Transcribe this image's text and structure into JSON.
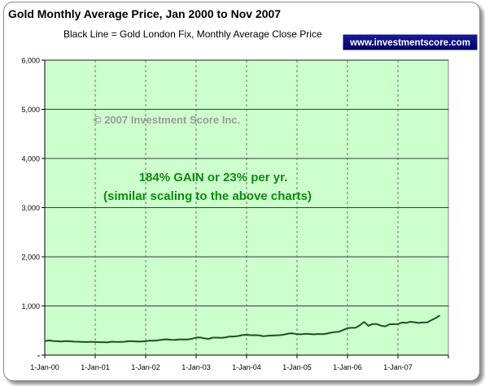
{
  "chart_data": {
    "type": "line",
    "title": "Gold Monthly Average Price, Jan 2000 to Nov 2007",
    "subtitle": "Black Line = Gold London Fix, Monthly Average Close Price",
    "badge_text": "www.investmentscore.com",
    "watermark": "© 2007 Investment Score Inc.",
    "annotation_line1": "184% GAIN or 23% per yr.",
    "annotation_line2": "(similar scaling to the above charts)",
    "ylim": [
      0,
      6000
    ],
    "y_ticks": [
      "6,000",
      "5,000",
      "4,000",
      "3,000",
      "2,000",
      "1,000",
      "-"
    ],
    "x_ticks": [
      "1-Jan-00",
      "1-Jan-01",
      "1-Jan-02",
      "1-Jan-03",
      "1-Jan-04",
      "1-Jan-05",
      "1-Jan-06",
      "1-Jan-07"
    ],
    "x_range": [
      "2000-01-01",
      "2008-01-01"
    ],
    "grid": true,
    "colors": {
      "plot_bg": "#ccffcc",
      "line": "#1f4f1f",
      "annotation": "#118811",
      "badge_bg": "#000080",
      "badge_text": "#ffffff",
      "gridline": "#000000"
    },
    "series": [
      {
        "values": [
          [
            "2000-01-01",
            285
          ],
          [
            "2000-02-01",
            300
          ],
          [
            "2000-03-01",
            288
          ],
          [
            "2000-04-01",
            282
          ],
          [
            "2000-05-01",
            276
          ],
          [
            "2000-06-01",
            285
          ],
          [
            "2000-07-01",
            282
          ],
          [
            "2000-08-01",
            275
          ],
          [
            "2000-09-01",
            273
          ],
          [
            "2000-10-01",
            270
          ],
          [
            "2000-11-01",
            266
          ],
          [
            "2000-12-01",
            271
          ],
          [
            "2001-01-01",
            266
          ],
          [
            "2001-02-01",
            262
          ],
          [
            "2001-03-01",
            263
          ],
          [
            "2001-04-01",
            261
          ],
          [
            "2001-05-01",
            272
          ],
          [
            "2001-06-01",
            270
          ],
          [
            "2001-07-01",
            267
          ],
          [
            "2001-08-01",
            272
          ],
          [
            "2001-09-01",
            283
          ],
          [
            "2001-10-01",
            283
          ],
          [
            "2001-11-01",
            276
          ],
          [
            "2001-12-01",
            276
          ],
          [
            "2002-01-01",
            282
          ],
          [
            "2002-02-01",
            296
          ],
          [
            "2002-03-01",
            294
          ],
          [
            "2002-04-01",
            302
          ],
          [
            "2002-05-01",
            314
          ],
          [
            "2002-06-01",
            322
          ],
          [
            "2002-07-01",
            313
          ],
          [
            "2002-08-01",
            310
          ],
          [
            "2002-09-01",
            319
          ],
          [
            "2002-10-01",
            317
          ],
          [
            "2002-11-01",
            319
          ],
          [
            "2002-12-01",
            333
          ],
          [
            "2003-01-01",
            357
          ],
          [
            "2003-02-01",
            358
          ],
          [
            "2003-03-01",
            340
          ],
          [
            "2003-04-01",
            329
          ],
          [
            "2003-05-01",
            355
          ],
          [
            "2003-06-01",
            356
          ],
          [
            "2003-07-01",
            351
          ],
          [
            "2003-08-01",
            360
          ],
          [
            "2003-09-01",
            379
          ],
          [
            "2003-10-01",
            379
          ],
          [
            "2003-11-01",
            389
          ],
          [
            "2003-12-01",
            407
          ],
          [
            "2004-01-01",
            414
          ],
          [
            "2004-02-01",
            405
          ],
          [
            "2004-03-01",
            406
          ],
          [
            "2004-04-01",
            404
          ],
          [
            "2004-05-01",
            384
          ],
          [
            "2004-06-01",
            392
          ],
          [
            "2004-07-01",
            398
          ],
          [
            "2004-08-01",
            401
          ],
          [
            "2004-09-01",
            406
          ],
          [
            "2004-10-01",
            420
          ],
          [
            "2004-11-01",
            439
          ],
          [
            "2004-12-01",
            442
          ],
          [
            "2005-01-01",
            424
          ],
          [
            "2005-02-01",
            423
          ],
          [
            "2005-03-01",
            434
          ],
          [
            "2005-04-01",
            429
          ],
          [
            "2005-05-01",
            422
          ],
          [
            "2005-06-01",
            430
          ],
          [
            "2005-07-01",
            424
          ],
          [
            "2005-08-01",
            437
          ],
          [
            "2005-09-01",
            456
          ],
          [
            "2005-10-01",
            470
          ],
          [
            "2005-11-01",
            476
          ],
          [
            "2005-12-01",
            510
          ],
          [
            "2006-01-01",
            549
          ],
          [
            "2006-02-01",
            555
          ],
          [
            "2006-03-01",
            557
          ],
          [
            "2006-04-01",
            610
          ],
          [
            "2006-05-01",
            676
          ],
          [
            "2006-06-01",
            596
          ],
          [
            "2006-07-01",
            633
          ],
          [
            "2006-08-01",
            632
          ],
          [
            "2006-09-01",
            598
          ],
          [
            "2006-10-01",
            585
          ],
          [
            "2006-11-01",
            627
          ],
          [
            "2006-12-01",
            629
          ],
          [
            "2007-01-01",
            631
          ],
          [
            "2007-02-01",
            665
          ],
          [
            "2007-03-01",
            655
          ],
          [
            "2007-04-01",
            679
          ],
          [
            "2007-05-01",
            667
          ],
          [
            "2007-06-01",
            655
          ],
          [
            "2007-07-01",
            665
          ],
          [
            "2007-08-01",
            665
          ],
          [
            "2007-09-01",
            712
          ],
          [
            "2007-10-01",
            754
          ],
          [
            "2007-11-01",
            806
          ]
        ]
      }
    ]
  }
}
